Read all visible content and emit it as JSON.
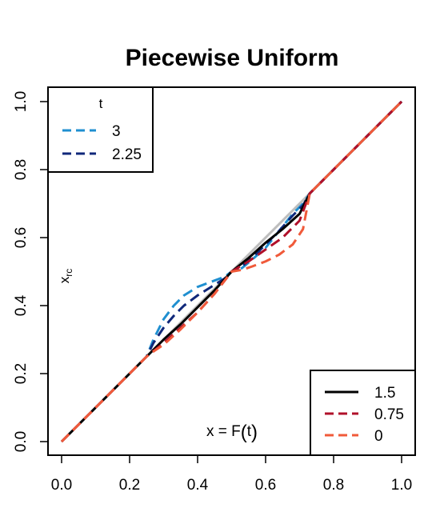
{
  "chart_data": {
    "type": "line",
    "title": "Piecewise Uniform",
    "xlabel": "x = F(t)",
    "ylabel": "x_rc",
    "xlim": [
      0,
      1
    ],
    "ylim": [
      0,
      1
    ],
    "x_ticks": [
      "0.0",
      "0.2",
      "0.4",
      "0.6",
      "0.8",
      "1.0"
    ],
    "y_ticks": [
      "0.0",
      "0.2",
      "0.4",
      "0.6",
      "0.8",
      "1.0"
    ],
    "grid": false,
    "reference_line": {
      "from": [
        0,
        0
      ],
      "to": [
        1,
        1
      ],
      "color": "#bebebe"
    },
    "legend_top_left": {
      "title": "t",
      "entries": [
        "3",
        "2.25"
      ]
    },
    "legend_bottom_right": {
      "entries": [
        "1.5",
        "0.75",
        "0"
      ]
    },
    "series": [
      {
        "name": "3",
        "color": "#1f8fd0",
        "dash": "dashed",
        "x": [
          0,
          0.25,
          0.27,
          0.3,
          0.33,
          0.36,
          0.4,
          0.44,
          0.48,
          0.5,
          0.53,
          0.56,
          0.6,
          0.64,
          0.68,
          0.71,
          0.73,
          1
        ],
        "y": [
          0,
          0.25,
          0.3,
          0.36,
          0.4,
          0.43,
          0.455,
          0.47,
          0.485,
          0.5,
          0.51,
          0.535,
          0.57,
          0.62,
          0.67,
          0.7,
          0.73,
          1
        ]
      },
      {
        "name": "2.25",
        "color": "#10287a",
        "dash": "dashed",
        "x": [
          0,
          0.25,
          0.27,
          0.3,
          0.33,
          0.36,
          0.4,
          0.44,
          0.48,
          0.5,
          0.53,
          0.56,
          0.6,
          0.64,
          0.68,
          0.71,
          0.73,
          1
        ],
        "y": [
          0,
          0.25,
          0.29,
          0.335,
          0.37,
          0.4,
          0.43,
          0.455,
          0.48,
          0.5,
          0.515,
          0.54,
          0.58,
          0.62,
          0.665,
          0.695,
          0.73,
          1
        ]
      },
      {
        "name": "1.5",
        "color": "#000000",
        "dash": "solid",
        "x": [
          0,
          0.25,
          0.3,
          0.35,
          0.4,
          0.45,
          0.5,
          0.55,
          0.6,
          0.65,
          0.7,
          0.73,
          1
        ],
        "y": [
          0,
          0.25,
          0.3,
          0.345,
          0.395,
          0.445,
          0.5,
          0.54,
          0.585,
          0.625,
          0.67,
          0.73,
          1
        ]
      },
      {
        "name": "0.75",
        "color": "#b0102a",
        "dash": "dashed",
        "x": [
          0,
          0.25,
          0.3,
          0.35,
          0.4,
          0.45,
          0.5,
          0.55,
          0.6,
          0.65,
          0.7,
          0.73,
          1
        ],
        "y": [
          0,
          0.25,
          0.29,
          0.335,
          0.38,
          0.435,
          0.5,
          0.53,
          0.565,
          0.6,
          0.65,
          0.73,
          1
        ]
      },
      {
        "name": "0",
        "color": "#f05a3a",
        "dash": "dashed",
        "x": [
          0,
          0.25,
          0.27,
          0.3,
          0.35,
          0.4,
          0.45,
          0.5,
          0.53,
          0.56,
          0.6,
          0.64,
          0.68,
          0.71,
          0.73,
          1
        ],
        "y": [
          0,
          0.25,
          0.265,
          0.285,
          0.33,
          0.38,
          0.435,
          0.5,
          0.505,
          0.515,
          0.53,
          0.55,
          0.58,
          0.625,
          0.73,
          1
        ]
      }
    ]
  }
}
